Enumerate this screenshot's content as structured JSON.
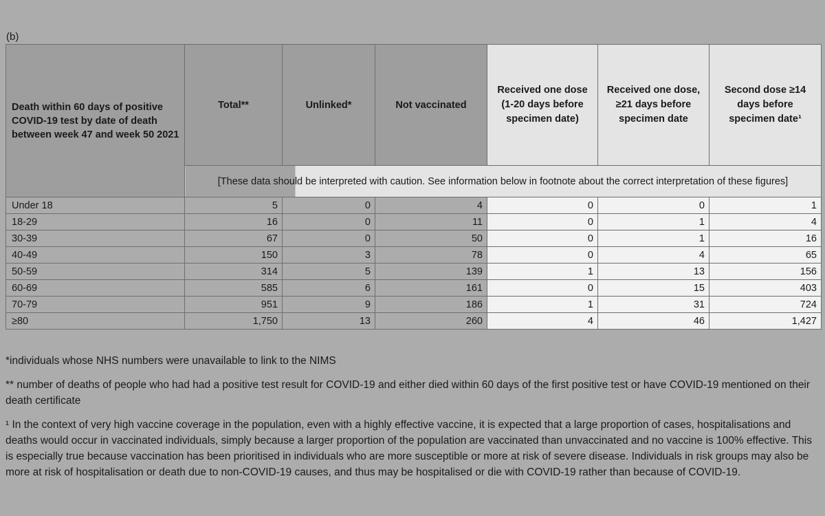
{
  "section_label": "(b)",
  "table": {
    "headers": [
      "Death within 60 days of positive COVID-19 test by date of death between week 47 and week 50 2021",
      "Total**",
      "Unlinked*",
      "Not vaccinated",
      "Received one dose (1-20 days before specimen date)",
      "Received one dose, ≥21 days before specimen date",
      "Second dose ≥14 days before specimen date¹"
    ],
    "caution": "[These data should be interpreted with caution. See information below in footnote about the correct interpretation of these figures]",
    "rows": [
      [
        "Under 18",
        "5",
        "0",
        "4",
        "0",
        "0",
        "1"
      ],
      [
        "18-29",
        "16",
        "0",
        "11",
        "0",
        "1",
        "4"
      ],
      [
        "30-39",
        "67",
        "0",
        "50",
        "0",
        "1",
        "16"
      ],
      [
        "40-49",
        "150",
        "3",
        "78",
        "0",
        "4",
        "65"
      ],
      [
        "50-59",
        "314",
        "5",
        "139",
        "1",
        "13",
        "156"
      ],
      [
        "60-69",
        "585",
        "6",
        "161",
        "0",
        "15",
        "403"
      ],
      [
        "70-79",
        "951",
        "9",
        "186",
        "1",
        "31",
        "724"
      ],
      [
        "≥80",
        "1,750",
        "13",
        "260",
        "4",
        "46",
        "1,427"
      ]
    ]
  },
  "footnotes": [
    "*individuals whose NHS numbers were unavailable to link to the NIMS",
    "** number of deaths of people who had had a positive test result for COVID-19 and either died within 60 days of the first positive test or have COVID-19 mentioned on their death certificate",
    "¹ In the context of very high vaccine coverage in the population, even with a highly effective vaccine, it is expected that a large proportion of cases, hospitalisations and deaths would occur in vaccinated individuals, simply because a larger proportion of the population are vaccinated than unvaccinated and no vaccine is 100% effective. This is especially true because vaccination has been prioritised in individuals who are more susceptible or more at risk of severe disease. Individuals in risk groups may also be more at risk of hospitalisation or death due to non-COVID-19 causes, and thus may be hospitalised or die with COVID-19 rather than because of COVID-19."
  ]
}
